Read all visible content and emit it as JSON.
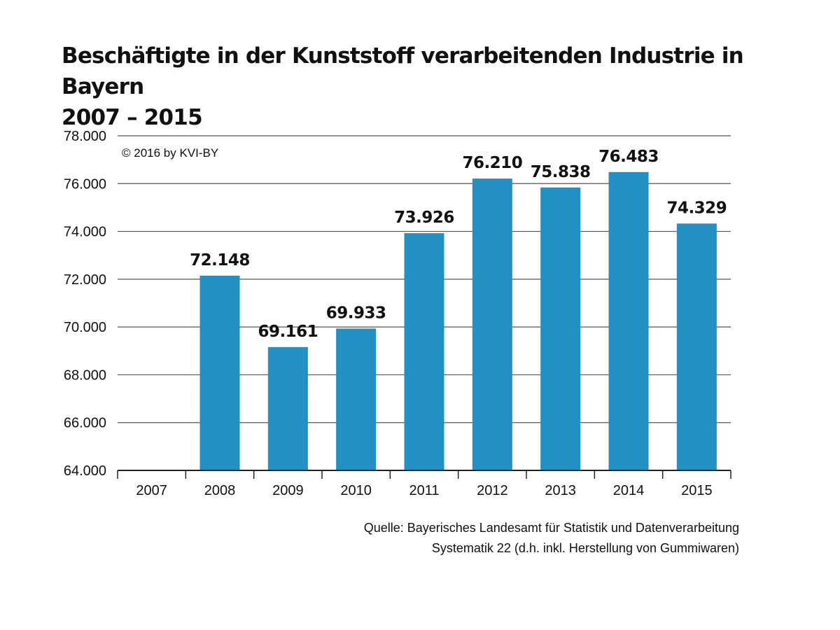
{
  "title": {
    "line1": "Beschäftigte in der Kunststoff verarbeitenden Industrie in Bayern",
    "line2": "2007 – 2015"
  },
  "copyright": "© 2016 by KVI-BY",
  "source": {
    "line1": "Quelle:  Bayerisches Landesamt für Statistik und Datenverarbeitung",
    "line2": "Systematik 22 (d.h. inkl. Herstellung von Gummiwaren)"
  },
  "colors": {
    "bar": "#2290c3",
    "grid": "#555555",
    "axis": "#222222"
  },
  "chart_data": {
    "type": "bar",
    "categories": [
      "2007",
      "2008",
      "2009",
      "2010",
      "2011",
      "2012",
      "2013",
      "2014",
      "2015"
    ],
    "values": [
      null,
      72148,
      69161,
      69933,
      73926,
      76210,
      75838,
      76483,
      74329
    ],
    "value_labels": [
      "",
      "72.148",
      "69.161",
      "69.933",
      "73.926",
      "76.210",
      "75.838",
      "76.483",
      "74.329"
    ],
    "ylim": [
      64000,
      78000
    ],
    "yticks": [
      64000,
      66000,
      68000,
      70000,
      72000,
      74000,
      76000,
      78000
    ],
    "ytick_labels": [
      "64.000",
      "66.000",
      "68.000",
      "70.000",
      "72.000",
      "74.000",
      "76.000",
      "78.000"
    ],
    "grid": true,
    "legend": "none"
  }
}
